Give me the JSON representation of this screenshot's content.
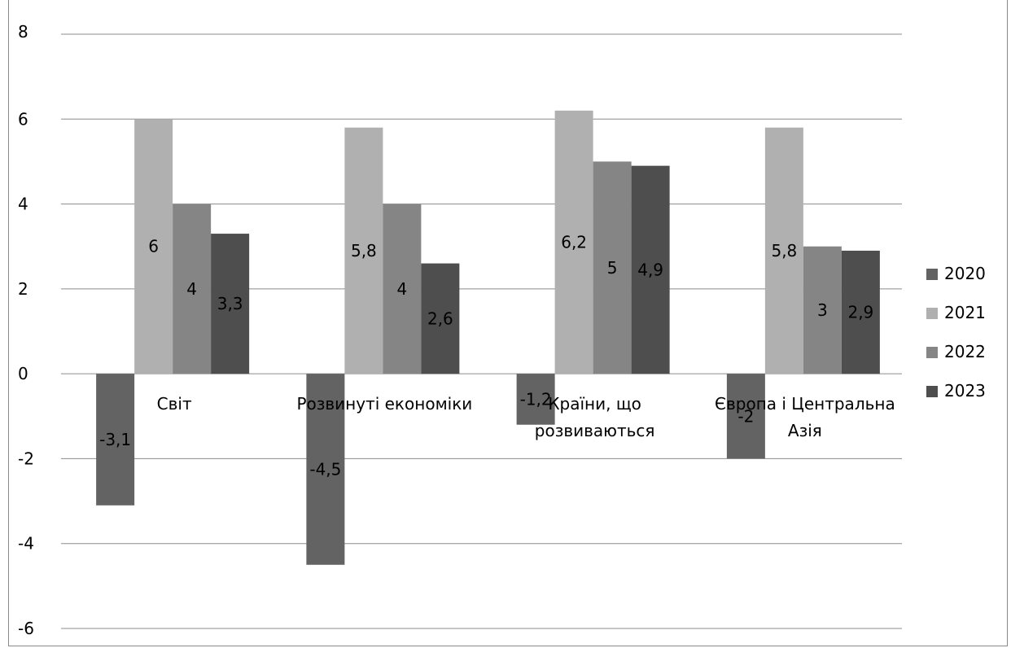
{
  "chart_data": {
    "type": "bar",
    "title": "",
    "xlabel": "",
    "ylabel": "",
    "ylim": [
      -6,
      8
    ],
    "yticks": [
      "8",
      "6",
      "4",
      "2",
      "0",
      "-2",
      "-4",
      "-6"
    ],
    "grid": true,
    "legend_position": "right",
    "categories": [
      [
        "Світ"
      ],
      [
        "Розвинуті економіки"
      ],
      [
        "Країни, що",
        "розвиваються"
      ],
      [
        "Європа і Центральна",
        "Азія"
      ]
    ],
    "series": [
      {
        "name": "2020",
        "color": "#636363",
        "values": [
          -3.1,
          -4.5,
          -1.2,
          -2
        ],
        "labels": [
          "-3,1",
          "-4,5",
          "-1,2",
          "-2"
        ]
      },
      {
        "name": "2021",
        "color": "#b0b0b0",
        "values": [
          6,
          5.8,
          6.2,
          5.8
        ],
        "labels": [
          "6",
          "5,8",
          "6,2",
          "5,8"
        ]
      },
      {
        "name": "2022",
        "color": "#858585",
        "values": [
          4,
          4,
          5,
          3
        ],
        "labels": [
          "4",
          "4",
          "5",
          "3"
        ]
      },
      {
        "name": "2023",
        "color": "#4e4e4e",
        "values": [
          3.3,
          2.6,
          4.9,
          2.9
        ],
        "labels": [
          "3,3",
          "2,6",
          "4,9",
          "2,9"
        ]
      }
    ]
  }
}
